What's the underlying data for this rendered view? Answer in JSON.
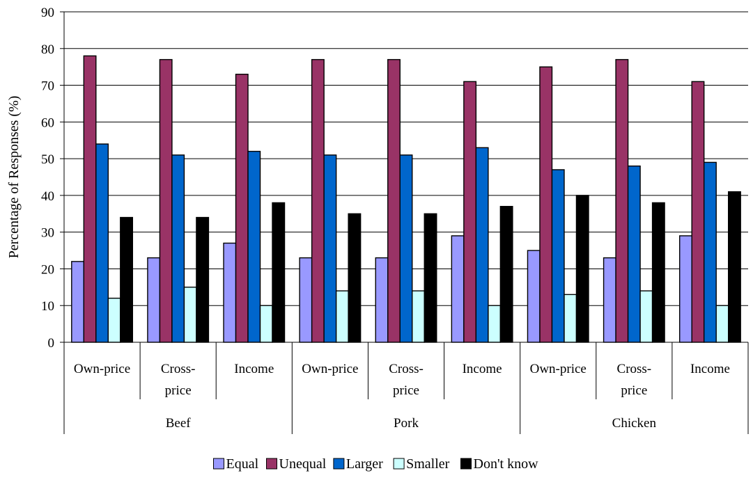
{
  "chart_data": {
    "type": "bar",
    "title": "",
    "xlabel": "",
    "ylabel": "Percentage of Responses (%)",
    "ylim": [
      0,
      90
    ],
    "yticks": [
      "0",
      "10",
      "20",
      "30",
      "40",
      "50",
      "60",
      "70",
      "80",
      "90"
    ],
    "grid": true,
    "legend_position": "bottom",
    "groups": [
      "Beef",
      "Pork",
      "Chicken"
    ],
    "categories": [
      [
        "Own-price"
      ],
      [
        "Cross-",
        "price"
      ],
      [
        "Income"
      ],
      [
        "Own-price"
      ],
      [
        "Cross-",
        "price"
      ],
      [
        "Income"
      ],
      [
        "Own-price"
      ],
      [
        "Cross-",
        "price"
      ],
      [
        "Income"
      ]
    ],
    "series": [
      {
        "name": "Equal",
        "color": "#9999ff",
        "values": [
          22,
          23,
          27,
          23,
          23,
          29,
          25,
          23,
          29
        ]
      },
      {
        "name": "Unequal",
        "color": "#993366",
        "values": [
          78,
          77,
          73,
          77,
          77,
          71,
          75,
          77,
          71
        ]
      },
      {
        "name": "Larger",
        "color": "#0066cc",
        "values": [
          54,
          51,
          52,
          51,
          51,
          53,
          47,
          48,
          49
        ]
      },
      {
        "name": "Smaller",
        "color": "#ccffff",
        "values": [
          12,
          15,
          10,
          14,
          14,
          10,
          13,
          14,
          10
        ]
      },
      {
        "name": "Don't know",
        "color": "#000000",
        "values": [
          34,
          34,
          38,
          35,
          35,
          37,
          40,
          38,
          41
        ]
      }
    ]
  }
}
